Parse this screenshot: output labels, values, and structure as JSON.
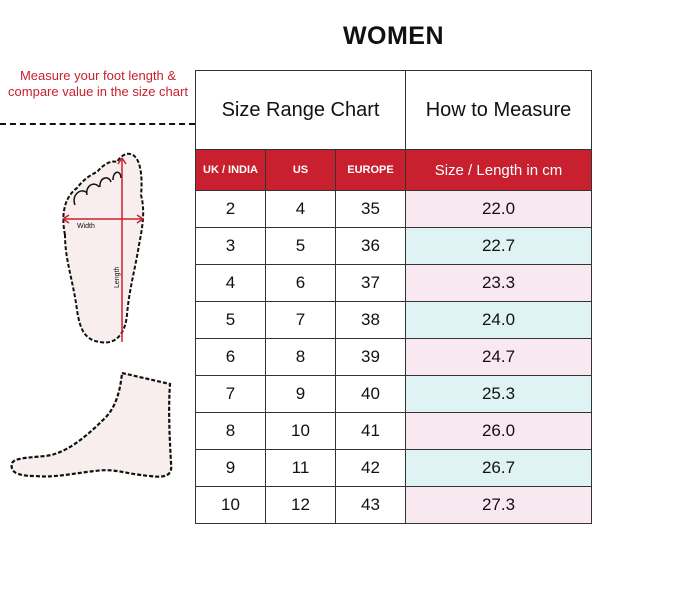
{
  "title": "WOMEN",
  "note": "Measure your foot length & compare value in the size chart",
  "diagram": {
    "width_label": "Width",
    "length_label": "Length"
  },
  "table": {
    "header_top": [
      "Size Range Chart",
      "How to Measure"
    ],
    "columns": [
      "UK / INDIA",
      "US",
      "EUROPE",
      "Size / Length in cm"
    ],
    "rows": [
      [
        "2",
        "4",
        "35",
        "22.0"
      ],
      [
        "3",
        "5",
        "36",
        "22.7"
      ],
      [
        "4",
        "6",
        "37",
        "23.3"
      ],
      [
        "5",
        "7",
        "38",
        "24.0"
      ],
      [
        "6",
        "8",
        "39",
        "24.7"
      ],
      [
        "7",
        "9",
        "40",
        "25.3"
      ],
      [
        "8",
        "10",
        "41",
        "26.0"
      ],
      [
        "9",
        "11",
        "42",
        "26.7"
      ],
      [
        "10",
        "12",
        "43",
        "27.3"
      ]
    ]
  },
  "colors": {
    "accent": "#c8202f",
    "row_pink": "#f8e9f1",
    "row_cyan": "#e0f3f4"
  }
}
